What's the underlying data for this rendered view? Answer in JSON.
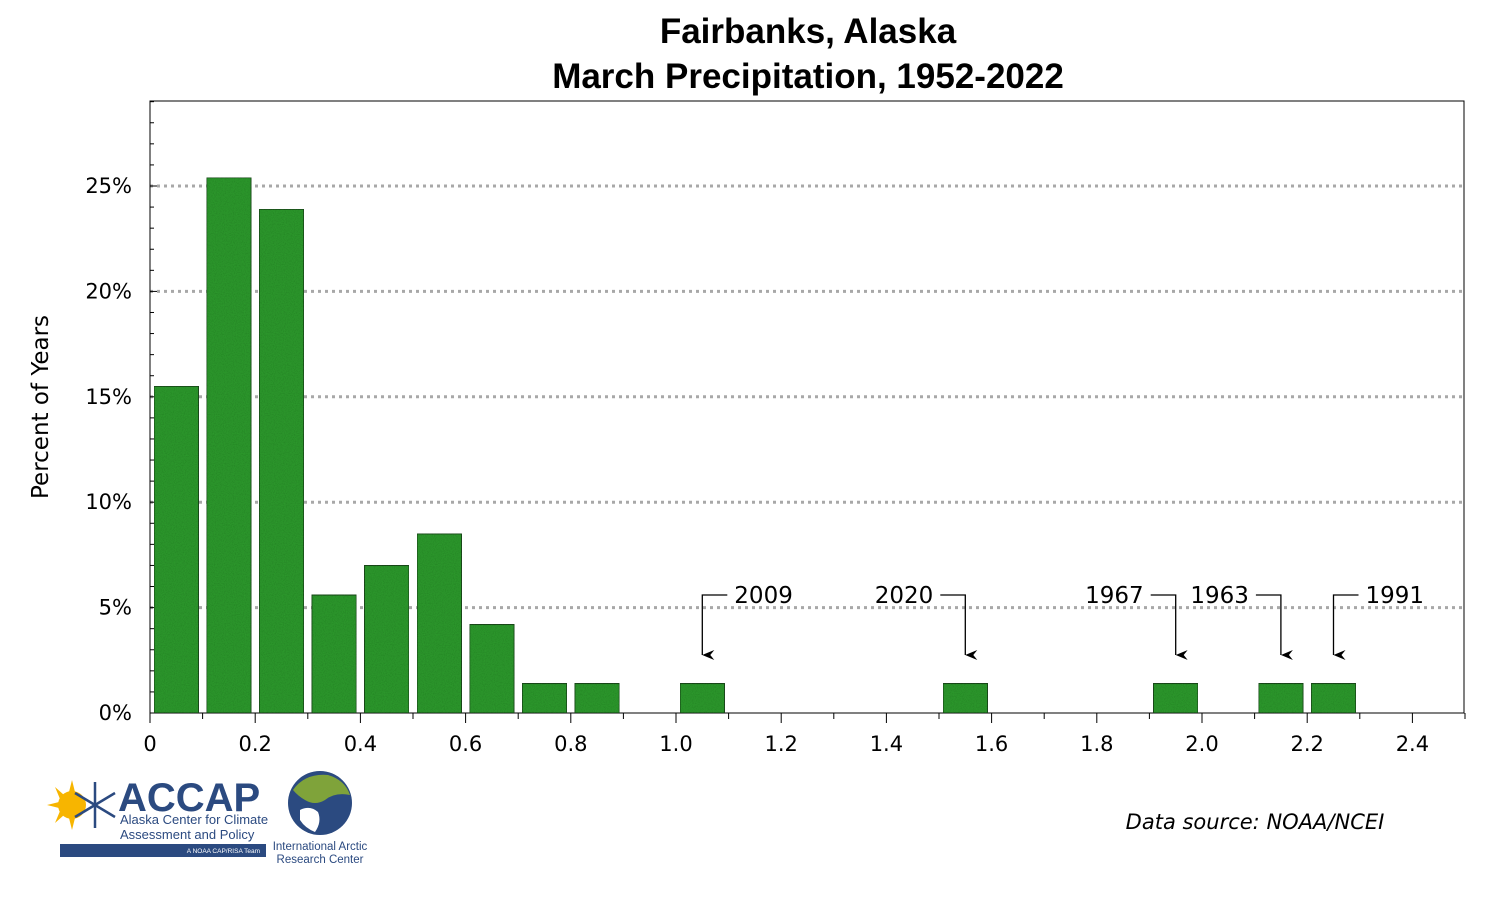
{
  "chart_data": {
    "type": "bar",
    "title": [
      "Fairbanks, Alaska",
      "March Precipitation, 1952-2022"
    ],
    "xlabel": "",
    "ylabel": "Percent of Years",
    "xlim": [
      0,
      2.5
    ],
    "ylim": [
      0,
      29
    ],
    "x_ticks": [
      "0",
      "0.2",
      "0.4",
      "0.6",
      "0.8",
      "1.0",
      "1.2",
      "1.4",
      "1.6",
      "1.8",
      "2.0",
      "2.2",
      "2.4"
    ],
    "y_ticks": [
      "0%",
      "5%",
      "10%",
      "15%",
      "20%",
      "25%"
    ],
    "bin_width": 0.1,
    "bins": [
      {
        "start": 0.0,
        "value": 15.5
      },
      {
        "start": 0.1,
        "value": 25.4
      },
      {
        "start": 0.2,
        "value": 23.9
      },
      {
        "start": 0.3,
        "value": 5.6
      },
      {
        "start": 0.4,
        "value": 7.0
      },
      {
        "start": 0.5,
        "value": 8.5
      },
      {
        "start": 0.6,
        "value": 4.2
      },
      {
        "start": 0.7,
        "value": 1.4
      },
      {
        "start": 0.8,
        "value": 1.4
      },
      {
        "start": 1.0,
        "value": 1.4
      },
      {
        "start": 1.5,
        "value": 1.4
      },
      {
        "start": 1.9,
        "value": 1.4
      },
      {
        "start": 2.1,
        "value": 1.4
      },
      {
        "start": 2.2,
        "value": 1.4
      }
    ],
    "annotations": [
      {
        "label": "2009",
        "x": 1.05,
        "side": "right"
      },
      {
        "label": "2020",
        "x": 1.55,
        "side": "left"
      },
      {
        "label": "1967",
        "x": 1.95,
        "side": "left"
      },
      {
        "label": "1963",
        "x": 2.15,
        "side": "left"
      },
      {
        "label": "1991",
        "x": 2.25,
        "side": "right"
      }
    ],
    "grid": "horizontal-dotted",
    "bar_color": "#2e9e2e",
    "legend": "none"
  },
  "source_note": "Data source: NOAA/NCEI",
  "logos": {
    "accap": {
      "name": "ACCAP",
      "line1": "Alaska Center for Climate",
      "line2": "Assessment and Policy",
      "band": "A NOAA CAP/RISA Team"
    },
    "iarc": {
      "line1": "International Arctic",
      "line2": "Research Center"
    }
  }
}
